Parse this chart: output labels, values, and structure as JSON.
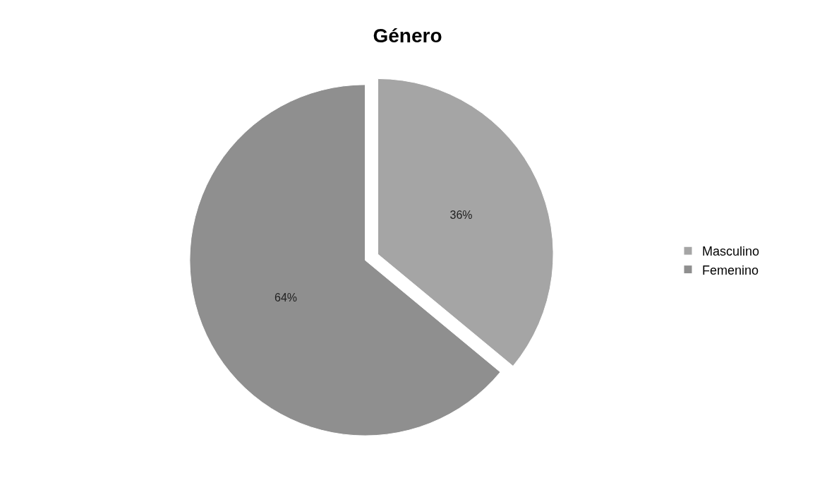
{
  "chart_data": {
    "type": "pie",
    "title": "Género",
    "categories": [
      "Masculino",
      "Femenino"
    ],
    "values": [
      36,
      64
    ],
    "value_labels": [
      "36%",
      "64%"
    ],
    "colors": [
      "#a5a5a5",
      "#8f8f8f"
    ],
    "legend": "right"
  }
}
